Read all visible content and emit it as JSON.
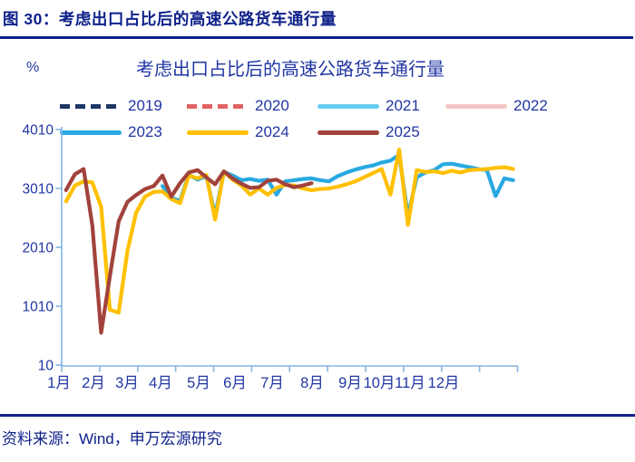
{
  "page": {
    "figure_title": "图 30：考虑出口占比后的高速公路货车通行量",
    "source": "资料来源：Wind，申万宏源研究"
  },
  "chart_data": {
    "type": "line",
    "title": "考虑出口占比后的高速公路货车通行量",
    "unit_label": "%",
    "x_tick_labels": [
      "1月",
      "2月",
      "3月",
      "4月",
      "5月",
      "6月",
      "7月",
      "8月",
      "9月",
      "10月",
      "11月",
      "12月"
    ],
    "y_ticks": [
      10,
      1010,
      2010,
      3010,
      4010
    ],
    "y_range": [
      10,
      4010
    ],
    "x_axis_note": "weekly observations, weeks 1-52",
    "grid": false,
    "legend_position": "top",
    "axis_color": "#84B4E4",
    "text_color": "#2136A3",
    "accent_color": "#0E2189",
    "legend": [
      {
        "label": "2019",
        "color": "#1F3864",
        "style": "dashed",
        "plotted": false
      },
      {
        "label": "2020",
        "color": "#E06363",
        "style": "dashed",
        "plotted": false
      },
      {
        "label": "2021",
        "color": "#66CBF2",
        "style": "solid",
        "plotted": false
      },
      {
        "label": "2022",
        "color": "#F2C6C3",
        "style": "solid",
        "plotted": false
      },
      {
        "label": "2023",
        "color": "#29A9E1",
        "style": "solid",
        "plotted": true
      },
      {
        "label": "2024",
        "color": "#FFC000",
        "style": "solid",
        "plotted": true
      },
      {
        "label": "2025",
        "color": "#A1423B",
        "style": "solid",
        "plotted": true
      }
    ],
    "series": [
      {
        "name": "2023",
        "color": "#29A9E1",
        "start_week": 12,
        "values": [
          3050,
          2850,
          2800,
          3240,
          3160,
          3220,
          2550,
          3290,
          3230,
          3150,
          3170,
          3140,
          3160,
          2905,
          3130,
          3150,
          3170,
          3180,
          3150,
          3130,
          3220,
          3280,
          3330,
          3370,
          3400,
          3450,
          3480,
          3580,
          2545,
          3200,
          3280,
          3320,
          3420,
          3430,
          3400,
          3370,
          3340,
          3320,
          2880,
          3180,
          3150
        ]
      },
      {
        "name": "2024",
        "color": "#FFC000",
        "start_week": 1,
        "values": [
          2790,
          3060,
          3130,
          3110,
          2700,
          950,
          900,
          1950,
          2600,
          2870,
          2950,
          2960,
          2830,
          2760,
          3230,
          3180,
          3240,
          2480,
          3300,
          3160,
          3060,
          2905,
          3010,
          2905,
          3020,
          3070,
          3060,
          3010,
          2980,
          3000,
          3010,
          3040,
          3080,
          3130,
          3200,
          3270,
          3340,
          2905,
          3670,
          2390,
          3320,
          3290,
          3300,
          3270,
          3310,
          3280,
          3320,
          3330,
          3340,
          3360,
          3370,
          3340
        ]
      },
      {
        "name": "2025",
        "color": "#A1423B",
        "start_week": 1,
        "values": [
          2980,
          3250,
          3340,
          2380,
          560,
          1520,
          2450,
          2780,
          2900,
          3000,
          3050,
          3230,
          2870,
          3100,
          3280,
          3320,
          3200,
          3080,
          3300,
          3180,
          3090,
          3020,
          3030,
          3140,
          3160,
          3080,
          3030,
          3060,
          3100
        ]
      }
    ]
  }
}
